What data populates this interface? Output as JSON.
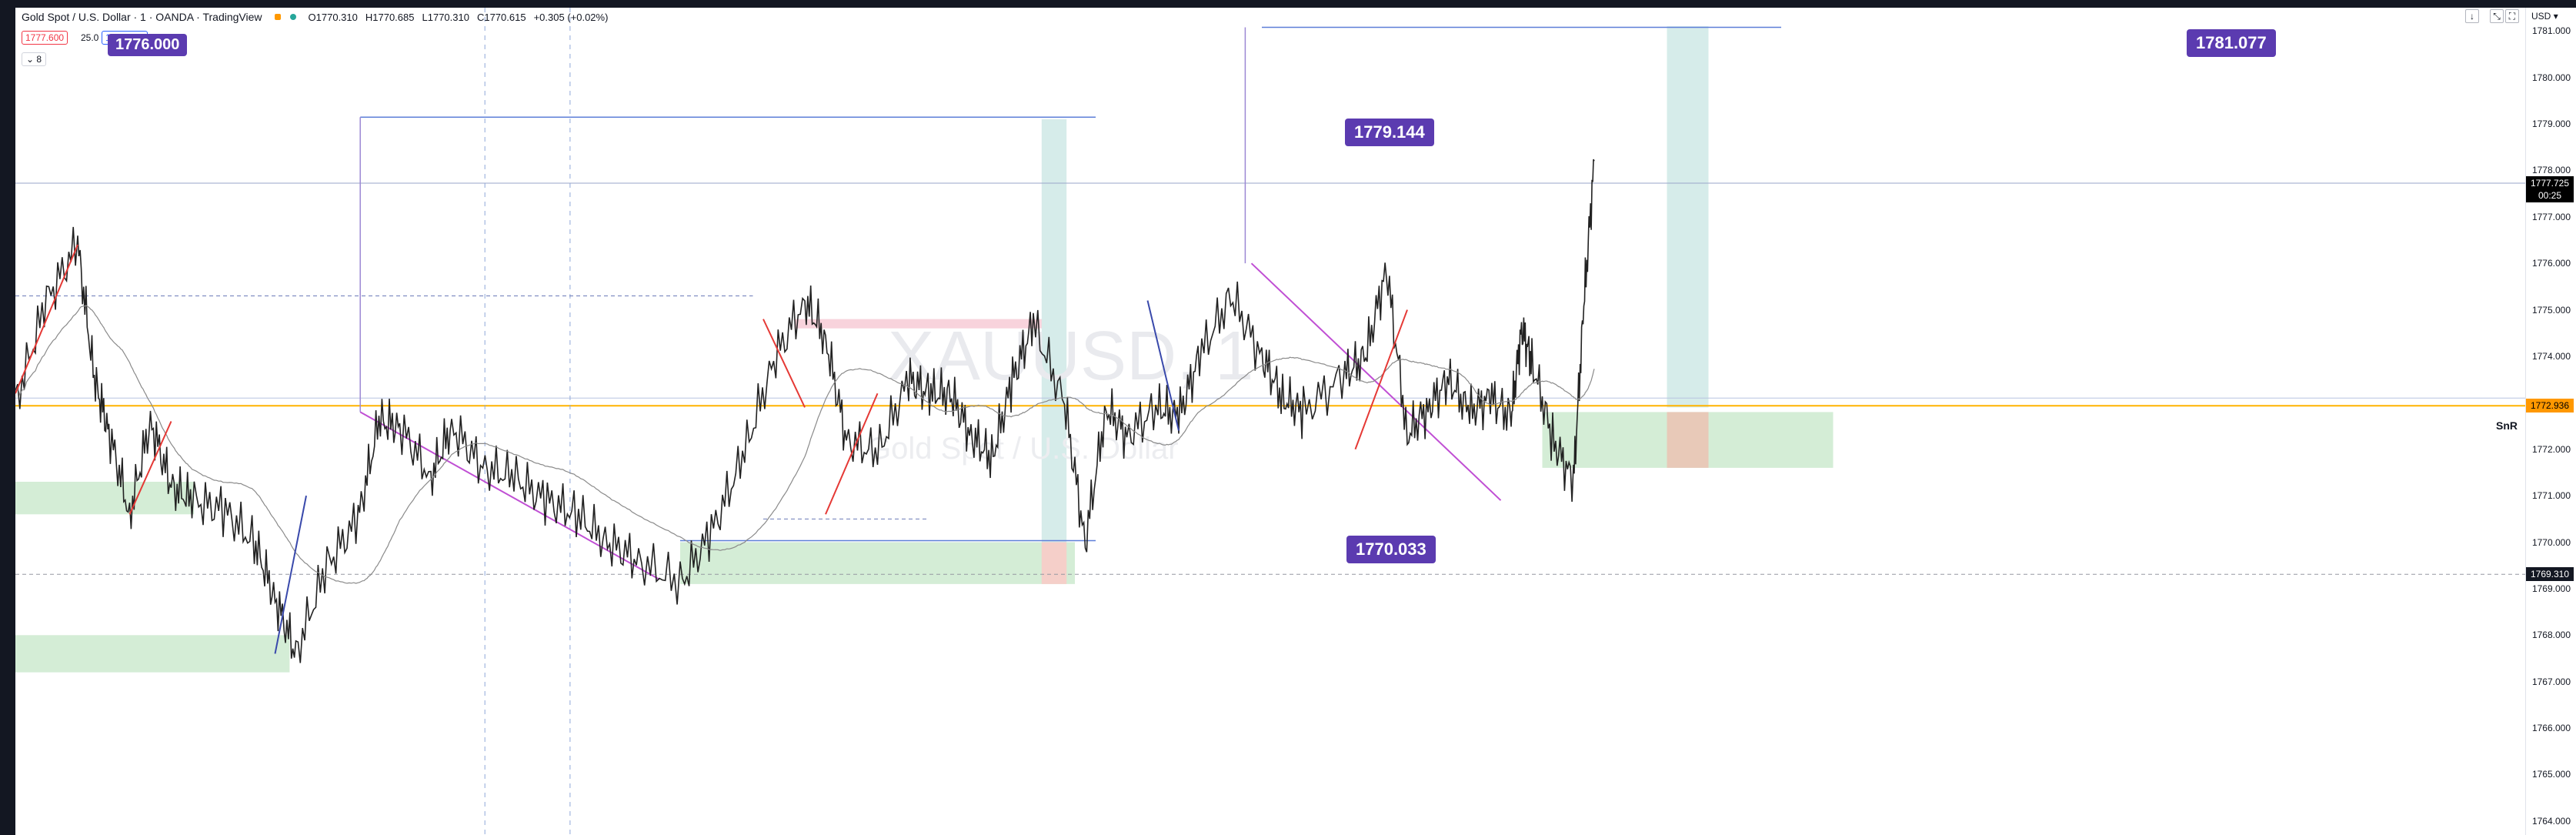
{
  "header": {
    "symbol": "Gold Spot / U.S. Dollar · 1 · OANDA · TradingView",
    "open": "O1770.310",
    "high": "H1770.685",
    "low": "L1770.310",
    "close": "C1770.615",
    "change": "+0.305 (+0.02%)",
    "sell_price": "1777.600",
    "spread": "25.0",
    "buy_price": "1777.850",
    "indicators_toggle": "8",
    "currency": "USD",
    "status_color": "#26a69a",
    "alert_color": "#ff9800"
  },
  "labels": {
    "hidden_top_left": "1776.000",
    "target_left": "1779.144",
    "stop_left": "1770.033",
    "target_right": "1781.077",
    "snr": "SnR"
  },
  "axis": {
    "ticks": [
      "1781.000",
      "1780.000",
      "1779.000",
      "1778.000",
      "1777.000",
      "1776.000",
      "1775.000",
      "1774.000",
      "1773.000",
      "1772.000",
      "1771.000",
      "1770.000",
      "1769.000",
      "1768.000",
      "1767.000",
      "1766.000",
      "1765.000",
      "1764.000"
    ],
    "last_price": "1777.725",
    "countdown": "00:25",
    "snr_price": "1772.936",
    "crosshair_price": "1769.310"
  },
  "watermark": {
    "ticker": "XAUUSD, 1",
    "name": "Gold Spot / U.S. Dollar"
  },
  "chart_data": {
    "type": "line",
    "title": "Gold Spot / U.S. Dollar · 1 · OANDA · TradingView",
    "ylim": [
      1763.7,
      1781.5
    ],
    "xlim": [
      0,
      100
    ],
    "x": [
      0,
      1.5,
      3,
      3.8,
      4.5,
      5.5,
      6.5,
      7.5,
      8.5,
      10,
      11.5,
      12.5,
      13.5,
      15,
      16.5,
      17.5,
      18.5,
      20,
      21,
      22.5,
      24,
      25.5,
      27,
      28.5,
      30,
      32,
      33.5,
      35,
      36.5,
      38,
      39,
      40,
      41.5,
      43,
      44,
      45,
      46,
      47,
      48,
      49,
      50.5,
      51.5,
      52.5,
      53.5,
      55,
      56,
      57,
      58.5,
      60,
      61,
      62,
      64,
      65,
      66,
      67,
      68,
      69,
      70,
      71,
      72,
      72.5,
      73,
      74,
      75,
      75.5,
      76
    ],
    "series": [
      {
        "values": [
          1773,
          1775.2,
          1776.4,
          1773.5,
          1772.4,
          1770.6,
          1772.6,
          1771.2,
          1770.9,
          1770.7,
          1770,
          1768.8,
          1767.6,
          1769.5,
          1770.5,
          1772.6,
          1772.5,
          1771.4,
          1772.5,
          1771.6,
          1771.4,
          1770.9,
          1770.6,
          1770,
          1769.6,
          1769.1,
          1770.2,
          1771.8,
          1773.9,
          1775.2,
          1774.4,
          1772.2,
          1771.9,
          1773.5,
          1773.2,
          1773.2,
          1772.3,
          1771.8,
          1773.5,
          1774.7,
          1773,
          1770,
          1772.9,
          1772.3,
          1772.9,
          1772.7,
          1774,
          1775.3,
          1774,
          1773.1,
          1772.8,
          1773.6,
          1774,
          1775.9,
          1772.3,
          1772.9,
          1773.5,
          1772.8,
          1773.1,
          1772.7,
          1774.6,
          1773.9,
          1772.2,
          1771.3,
          1775.1,
          1778.2
        ]
      }
    ],
    "annotations": [
      "1779.144",
      "1770.033",
      "1781.077",
      "1776.000",
      "SnR"
    ]
  }
}
